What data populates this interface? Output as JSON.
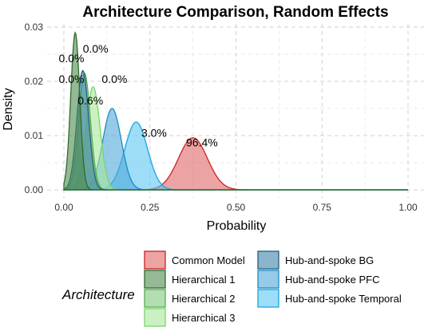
{
  "chart_data": {
    "type": "area",
    "title": "Architecture Comparison, Random Effects",
    "xlabel": "Probability",
    "ylabel": "Density",
    "xlim": [
      0,
      1
    ],
    "ylim": [
      0,
      0.03
    ],
    "x_ticks": [
      "0.00",
      "0.25",
      "0.50",
      "0.75",
      "1.00"
    ],
    "y_ticks": [
      "0.00",
      "0.01",
      "0.02",
      "0.03"
    ],
    "grid": true,
    "legend_title": "Architecture",
    "legend_position": "bottom",
    "series": [
      {
        "name": "Common Model",
        "mean": 0.375,
        "sd": 0.042,
        "peak": 0.0096,
        "fill": "#E06666",
        "stroke": "#CC2222"
      },
      {
        "name": "Hierarchical 1",
        "mean": 0.033,
        "sd": 0.013,
        "peak": 0.029,
        "fill": "#4C8A4C",
        "stroke": "#2F6B2F"
      },
      {
        "name": "Hierarchical 2",
        "mean": 0.06,
        "sd": 0.017,
        "peak": 0.0215,
        "fill": "#7EC87E",
        "stroke": "#4FAF4F"
      },
      {
        "name": "Hierarchical 3",
        "mean": 0.085,
        "sd": 0.02,
        "peak": 0.019,
        "fill": "#A8E89A",
        "stroke": "#7BD46B"
      },
      {
        "name": "Hub-and-spoke BG",
        "mean": 0.055,
        "sd": 0.017,
        "peak": 0.022,
        "fill": "#3E84A6",
        "stroke": "#1F5F80"
      },
      {
        "name": "Hub-and-spoke PFC",
        "mean": 0.14,
        "sd": 0.027,
        "peak": 0.015,
        "fill": "#4EA9D9",
        "stroke": "#1F8AC2"
      },
      {
        "name": "Hub-and-spoke Temporal",
        "mean": 0.21,
        "sd": 0.033,
        "peak": 0.0125,
        "fill": "#5CC6F2",
        "stroke": "#18A6E0"
      }
    ],
    "annotations": [
      {
        "text": "0.0%",
        "x": 0.055,
        "y": 0.0253
      },
      {
        "text": "0.0%",
        "x": -0.015,
        "y": 0.0235
      },
      {
        "text": "0.0%",
        "x": -0.015,
        "y": 0.0197
      },
      {
        "text": "0.0%",
        "x": 0.11,
        "y": 0.0197
      },
      {
        "text": "0.6%",
        "x": 0.04,
        "y": 0.0157
      },
      {
        "text": "3.0%",
        "x": 0.225,
        "y": 0.0098
      },
      {
        "text": "96.4%",
        "x": 0.355,
        "y": 0.008
      }
    ]
  }
}
